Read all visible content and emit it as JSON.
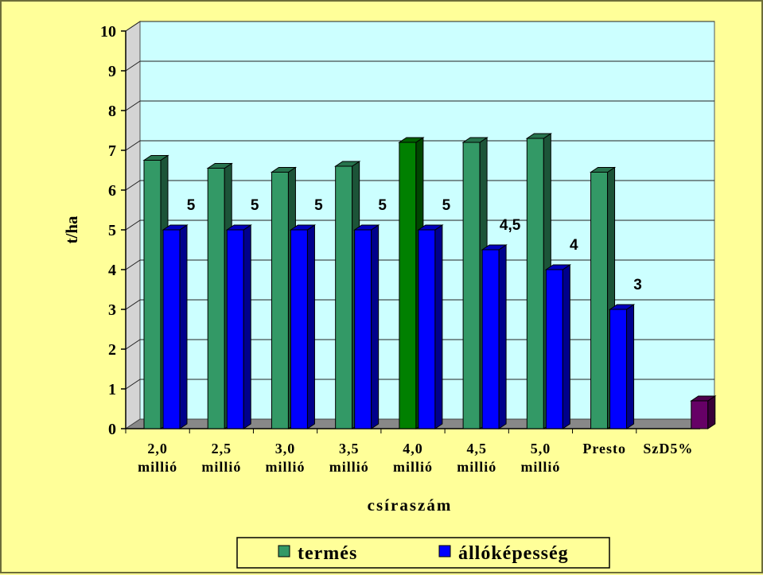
{
  "chart_data": {
    "type": "bar",
    "title": "",
    "xlabel": "csíraszám",
    "ylabel": "t/ha",
    "ylim": [
      0,
      10
    ],
    "yticks": [
      "0",
      "1",
      "2",
      "3",
      "4",
      "5",
      "6",
      "7",
      "8",
      "9",
      "10"
    ],
    "grid": true,
    "categories": [
      [
        "2,0",
        "millió"
      ],
      [
        "2,5",
        "millió"
      ],
      [
        "3,0",
        "millió"
      ],
      [
        "3,5",
        "millió"
      ],
      [
        "4,0",
        "millió"
      ],
      [
        "4,5",
        "millió"
      ],
      [
        "5,0",
        "millió"
      ],
      [
        "Presto"
      ],
      [
        "SzD5%"
      ]
    ],
    "series": [
      {
        "name": "termés",
        "color": "#339966",
        "values": [
          6.75,
          6.55,
          6.45,
          6.6,
          7.2,
          7.2,
          7.3,
          6.45,
          null
        ]
      },
      {
        "name": "állóképesség",
        "color": "#0000ff",
        "values": [
          5,
          5,
          5,
          5,
          5,
          4.5,
          4,
          3,
          null
        ],
        "data_labels": [
          "5",
          "5",
          "5",
          "5",
          "5",
          "4,5",
          "4",
          "3",
          ""
        ]
      },
      {
        "name": "",
        "color": "#660066",
        "values": [
          null,
          null,
          null,
          null,
          null,
          null,
          null,
          null,
          0.7
        ]
      }
    ],
    "highlight": {
      "category_index": 4,
      "bar_color": "#008000",
      "label_color": "#ff0000"
    },
    "plot_background": "#ccffff",
    "legend_position": "bottom"
  }
}
